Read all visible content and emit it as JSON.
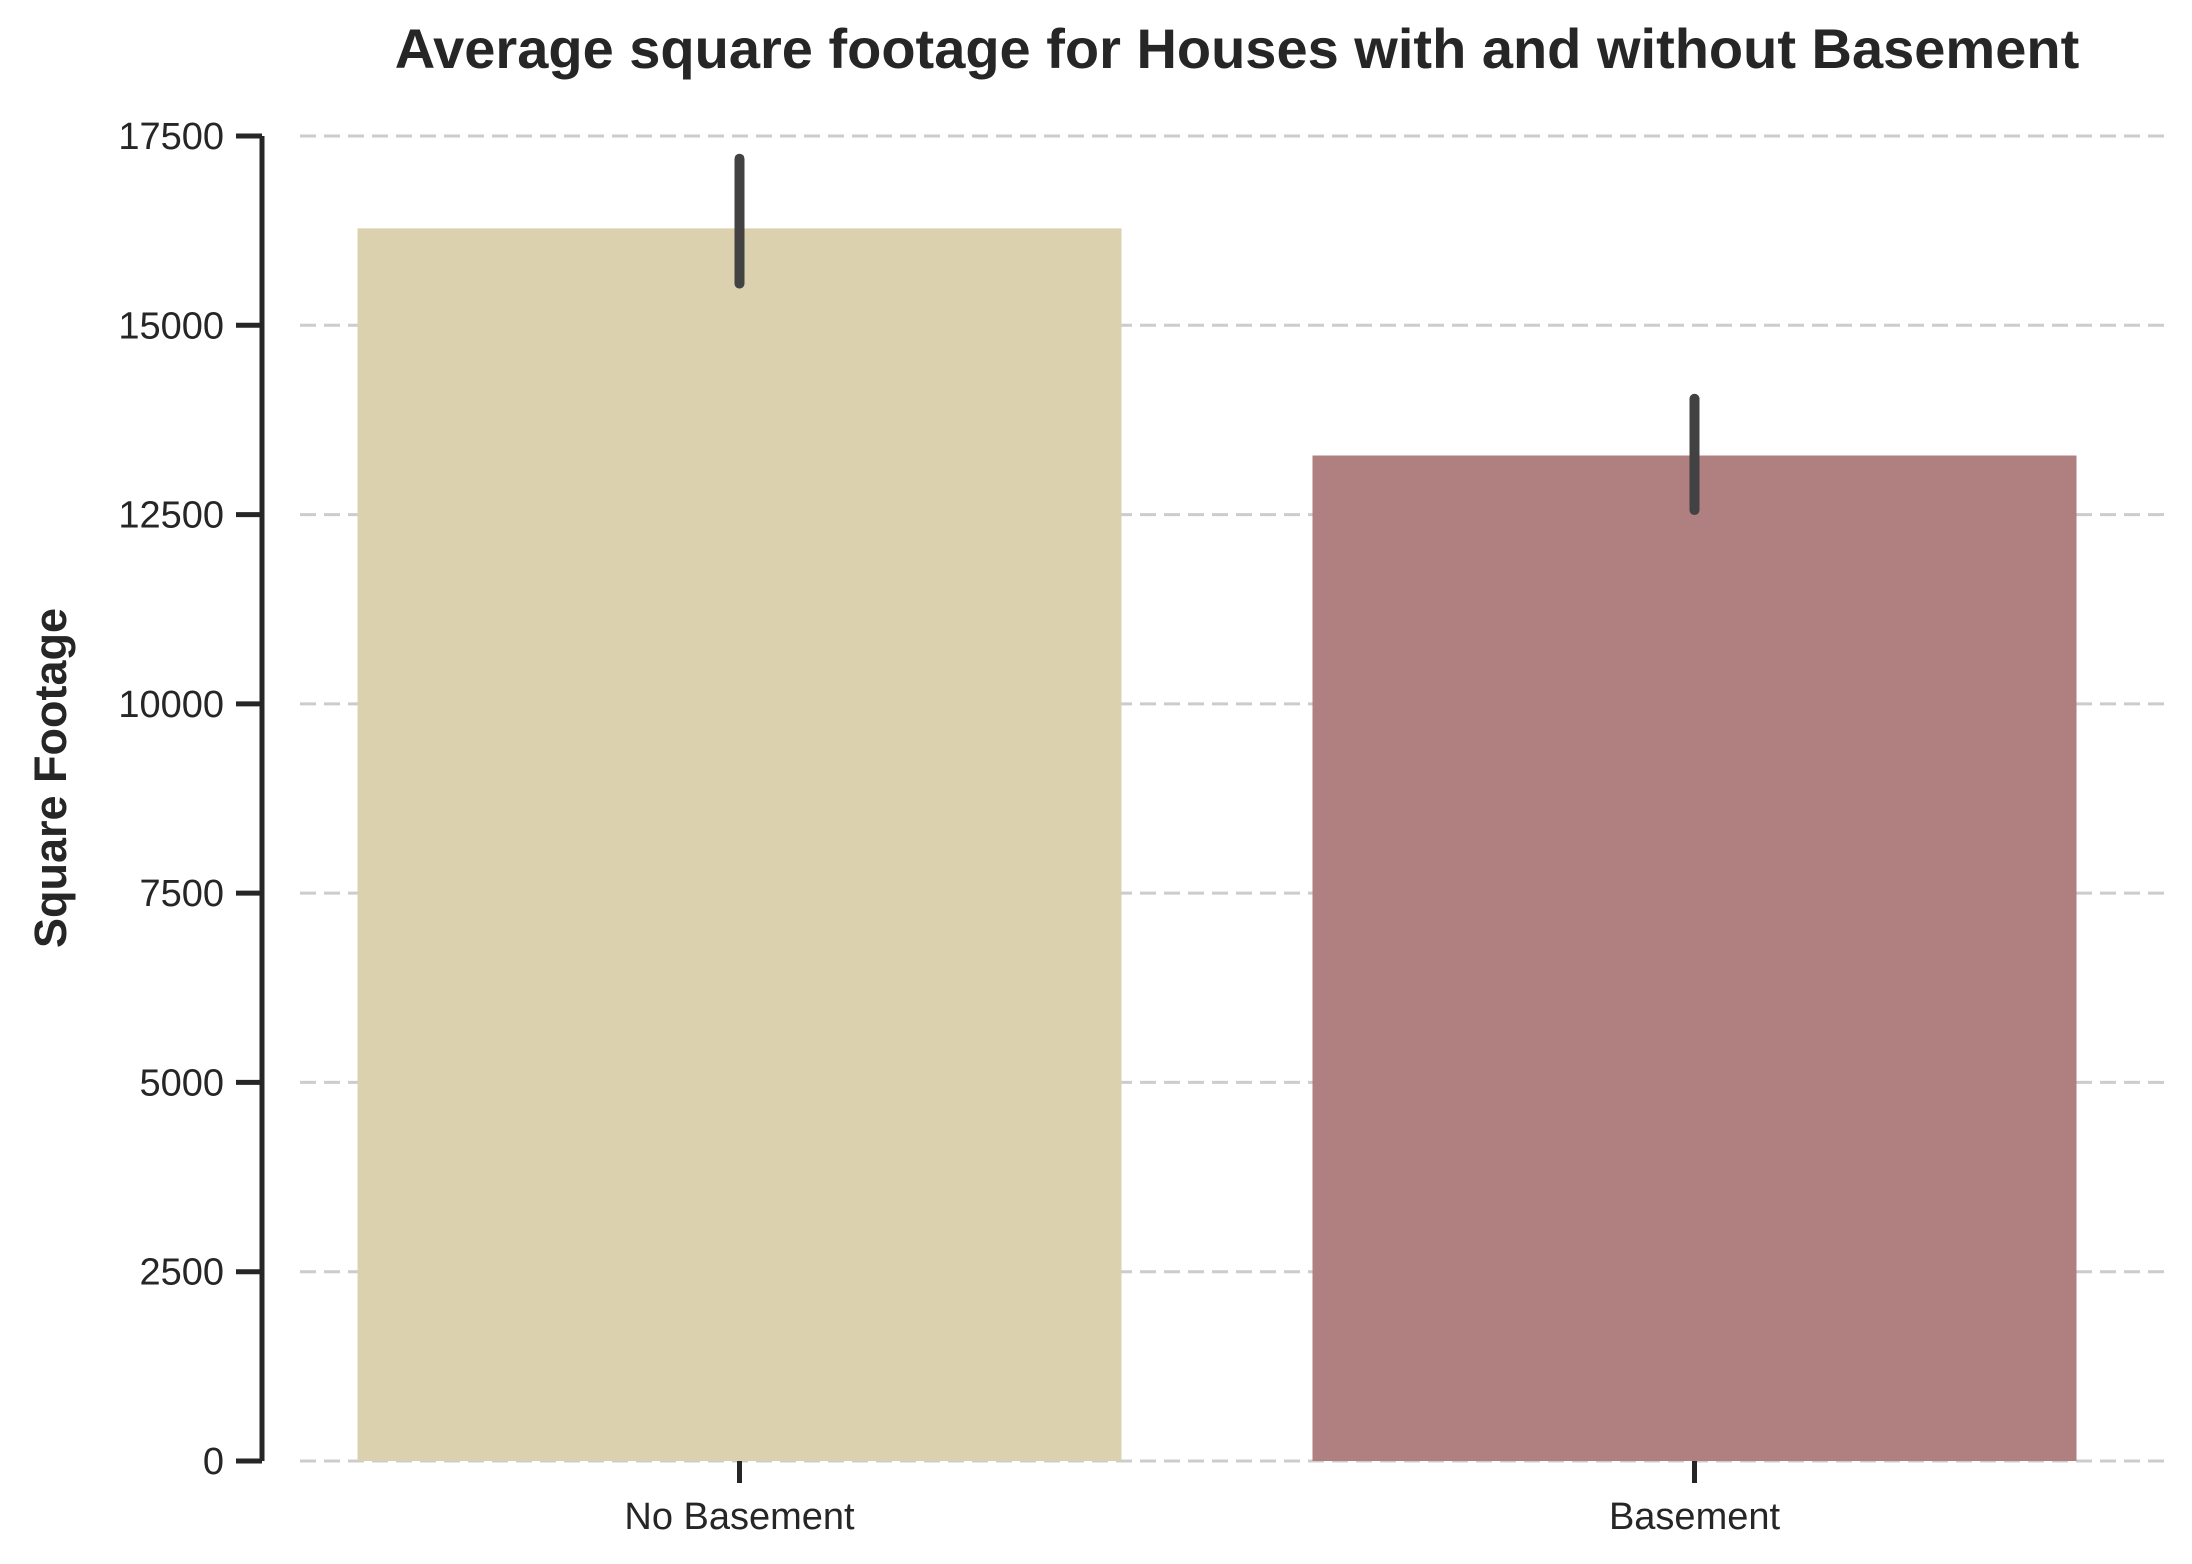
{
  "chart_data": {
    "type": "bar",
    "title": "Average square footage for Houses with and without Basement",
    "xlabel": "",
    "ylabel": "Square Footage",
    "categories": [
      "No Basement",
      "Basement"
    ],
    "values": [
      16280,
      13280
    ],
    "error_bars": [
      {
        "low": 15550,
        "high": 17200
      },
      {
        "low": 12560,
        "high": 14030
      }
    ],
    "colors": [
      "#dbd1af",
      "#b07f7f"
    ],
    "error_bar_color": "#424242",
    "ylim": [
      0,
      17500
    ],
    "yticks": [
      0,
      2500,
      5000,
      7500,
      10000,
      12500,
      15000,
      17500
    ],
    "ytick_labels": [
      "0",
      "2500",
      "5000",
      "7500",
      "10000",
      "12500",
      "15000",
      "17500"
    ],
    "grid": "horizontal dashed",
    "legend": "none"
  }
}
